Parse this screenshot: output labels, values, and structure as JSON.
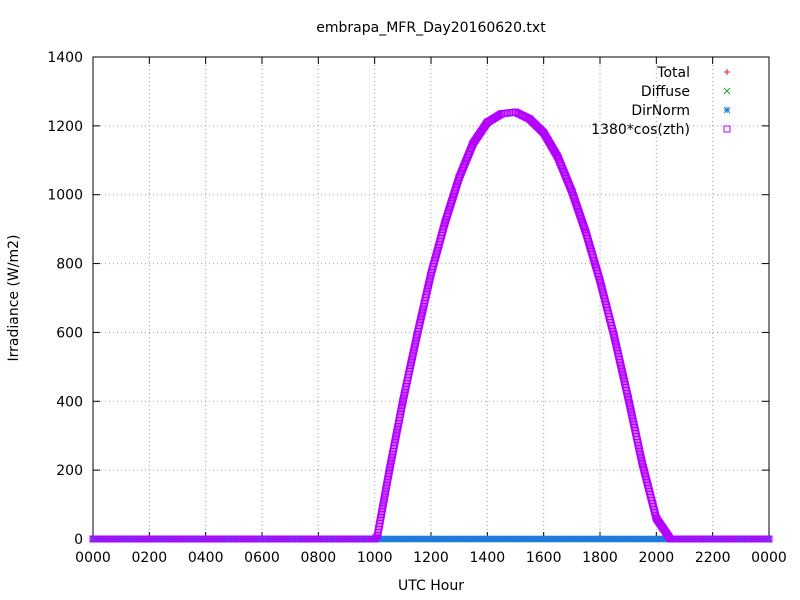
{
  "chart_data": {
    "type": "scatter",
    "title": "embrapa_MFR_Day20160620.txt",
    "xlabel": "UTC Hour",
    "ylabel": "Irradiance (W/m2)",
    "xlim": [
      0,
      24
    ],
    "ylim": [
      0,
      1400
    ],
    "grid": true,
    "legend_position": "top-right",
    "x_ticks": [
      {
        "value": 0,
        "label": "0000"
      },
      {
        "value": 2,
        "label": "0200"
      },
      {
        "value": 4,
        "label": "0400"
      },
      {
        "value": 6,
        "label": "0600"
      },
      {
        "value": 8,
        "label": "0800"
      },
      {
        "value": 10,
        "label": "1000"
      },
      {
        "value": 12,
        "label": "1200"
      },
      {
        "value": 14,
        "label": "1400"
      },
      {
        "value": 16,
        "label": "1600"
      },
      {
        "value": 18,
        "label": "1800"
      },
      {
        "value": 20,
        "label": "2000"
      },
      {
        "value": 22,
        "label": "2200"
      },
      {
        "value": 24,
        "label": "0000"
      }
    ],
    "y_ticks": [
      {
        "value": 0,
        "label": "0"
      },
      {
        "value": 200,
        "label": "200"
      },
      {
        "value": 400,
        "label": "400"
      },
      {
        "value": 600,
        "label": "600"
      },
      {
        "value": 800,
        "label": "800"
      },
      {
        "value": 1000,
        "label": "1000"
      },
      {
        "value": 1200,
        "label": "1200"
      },
      {
        "value": 1400,
        "label": "1400"
      }
    ],
    "series": [
      {
        "name": "Total",
        "marker": "plus",
        "color": "#e41a1c",
        "x": [
          0,
          2,
          4,
          6,
          8,
          10,
          12,
          14,
          16,
          18,
          20,
          22,
          24
        ],
        "y": [
          0,
          0,
          0,
          0,
          0,
          0,
          0,
          0,
          0,
          0,
          0,
          0,
          0
        ]
      },
      {
        "name": "Diffuse",
        "marker": "cross",
        "color": "#1aab1a",
        "x": [
          0,
          2,
          4,
          6,
          8,
          10,
          12,
          14,
          16,
          18,
          20,
          22,
          24
        ],
        "y": [
          0,
          0,
          0,
          0,
          0,
          0,
          0,
          0,
          0,
          0,
          0,
          0,
          0
        ]
      },
      {
        "name": "DirNorm",
        "marker": "star",
        "color": "#1e7bdc",
        "x": [
          0,
          2,
          4,
          6,
          8,
          10,
          12,
          14,
          16,
          18,
          20,
          22,
          24
        ],
        "y": [
          0,
          0,
          0,
          0,
          0,
          0,
          0,
          0,
          0,
          0,
          0,
          0,
          0
        ]
      },
      {
        "name": "1380*cos(zth)",
        "marker": "square",
        "color": "#b300ff",
        "x": [
          0,
          2,
          4,
          6,
          8,
          10,
          10.1,
          10.5,
          11,
          11.5,
          12,
          12.5,
          13,
          13.5,
          14,
          14.5,
          15,
          15.5,
          16,
          16.5,
          17,
          17.5,
          18,
          18.5,
          19,
          19.5,
          20,
          20.5,
          21,
          21.5,
          22,
          22.1,
          24
        ],
        "y": [
          0,
          0,
          0,
          0,
          0,
          0,
          10,
          190,
          400,
          590,
          770,
          920,
          1050,
          1150,
          1210,
          1235,
          1240,
          1220,
          1180,
          1110,
          1010,
          890,
          750,
          590,
          410,
          220,
          60,
          0,
          0,
          0,
          0,
          0,
          0
        ]
      }
    ]
  }
}
